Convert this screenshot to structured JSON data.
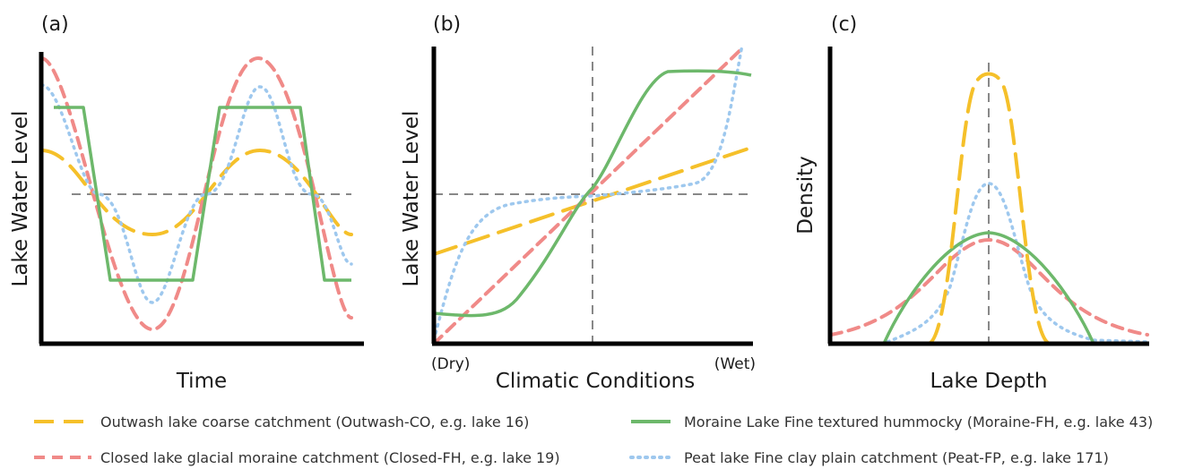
{
  "colors": {
    "outwash": "#f5c02a",
    "closed": "#f08a88",
    "moraine": "#6db86b",
    "peat": "#9ec8ee",
    "reference": "#888888",
    "axis": "#000000"
  },
  "panels": [
    {
      "label": "(a)",
      "xlabel": "Time",
      "ylabel": "Lake Water Level"
    },
    {
      "label": "(b)",
      "xlabel": "Climatic Conditions",
      "ylabel": "Lake Water Level",
      "x_left_tick": "(Dry)",
      "x_right_tick": "(Wet)"
    },
    {
      "label": "(c)",
      "xlabel": "Lake Depth",
      "ylabel": "Density"
    }
  ],
  "legend": [
    {
      "key": "outwash",
      "label": "Outwash lake coarse catchment (Outwash-CO, e.g. lake 16)",
      "style": "long-dash"
    },
    {
      "key": "moraine",
      "label": "Moraine Lake Fine textured hummocky (Moraine-FH, e.g. lake 43)",
      "style": "solid"
    },
    {
      "key": "closed",
      "label": "Closed lake glacial moraine catchment (Closed-FH, e.g. lake 19)",
      "style": "dash"
    },
    {
      "key": "peat",
      "label": "Peat lake Fine clay plain catchment (Peat-FP, e.g. lake 171)",
      "style": "dot"
    }
  ]
}
